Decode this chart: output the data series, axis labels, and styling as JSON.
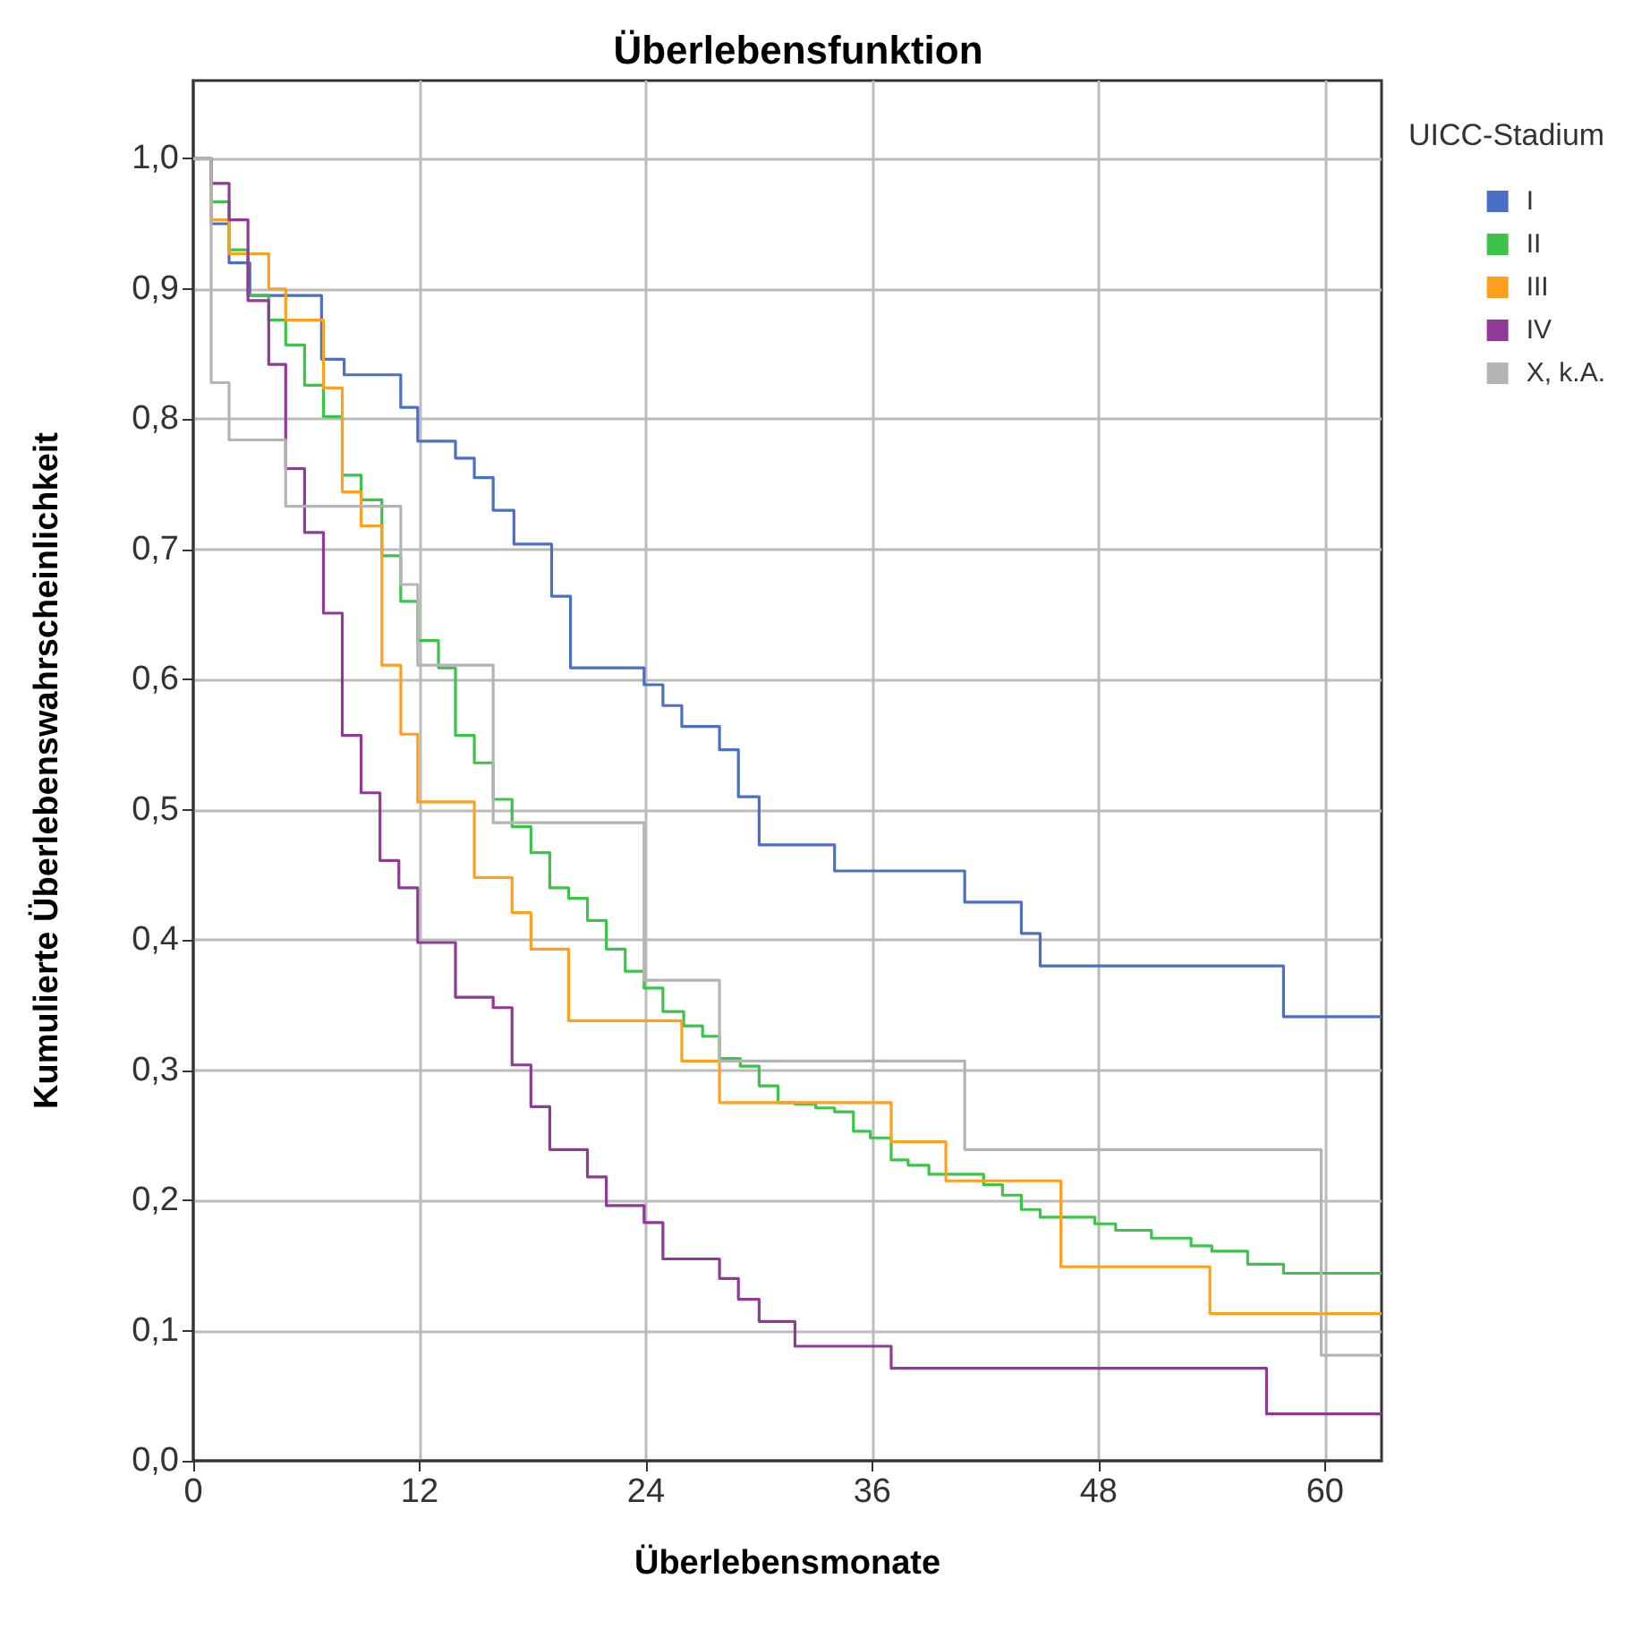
{
  "chart_data": {
    "type": "step",
    "title": "Überlebensfunktion",
    "xlabel": "Überlebensmonate",
    "ylabel": "Kumulierte Überlebenswahrscheinlichkeit",
    "legend_title": "UICC-Stadium",
    "xlim": [
      0,
      63
    ],
    "xticks": [
      0,
      12,
      24,
      36,
      48,
      60
    ],
    "ylim": [
      0,
      1.06
    ],
    "yticks": [
      {
        "value": 0,
        "label": "0,0"
      },
      {
        "value": 0.1,
        "label": "0,1"
      },
      {
        "value": 0.2,
        "label": "0,2"
      },
      {
        "value": 0.3,
        "label": "0,3"
      },
      {
        "value": 0.4,
        "label": "0,4"
      },
      {
        "value": 0.5,
        "label": "0,5"
      },
      {
        "value": 0.6,
        "label": "0,6"
      },
      {
        "value": 0.7,
        "label": "0,7"
      },
      {
        "value": 0.8,
        "label": "0,8"
      },
      {
        "value": 0.9,
        "label": "0,9"
      },
      {
        "value": 1,
        "label": "1,0"
      }
    ],
    "grid": true,
    "legend": "right",
    "marker": "none",
    "line_style": "solid",
    "series": [
      {
        "name": "I",
        "color": "#4a6fc4",
        "x": [
          0,
          0.95,
          1.9,
          3,
          6.8,
          8,
          11,
          11.9,
          13.9,
          14.9,
          15.9,
          17,
          19,
          20,
          23.9,
          24.9,
          25.9,
          27.9,
          28.9,
          30,
          34,
          40.9,
          43.9,
          44.9,
          57.8,
          63
        ],
        "values": [
          1,
          0.95,
          0.92,
          0.895,
          0.846,
          0.834,
          0.809,
          0.783,
          0.77,
          0.755,
          0.73,
          0.704,
          0.664,
          0.609,
          0.596,
          0.58,
          0.564,
          0.546,
          0.51,
          0.473,
          0.453,
          0.429,
          0.405,
          0.38,
          0.341,
          0.341
        ]
      },
      {
        "name": "II",
        "color": "#3cc34a",
        "x": [
          0,
          0.95,
          1.9,
          2.9,
          4,
          4.9,
          5.9,
          6.9,
          7.9,
          8.9,
          10,
          11,
          11.9,
          13,
          13.9,
          14.9,
          15.9,
          16.9,
          17.9,
          18.9,
          19.9,
          20.9,
          21.9,
          22.9,
          23.9,
          24.9,
          26,
          27,
          27.9,
          29,
          30,
          31,
          31.9,
          33,
          34,
          35,
          35.9,
          37,
          37.9,
          39,
          41.9,
          42.9,
          43.9,
          44.9,
          47.8,
          48.9,
          50.8,
          52.9,
          54,
          55.9,
          57.8,
          63
        ],
        "values": [
          1,
          0.967,
          0.93,
          0.895,
          0.876,
          0.857,
          0.826,
          0.802,
          0.757,
          0.738,
          0.695,
          0.66,
          0.63,
          0.609,
          0.557,
          0.536,
          0.508,
          0.487,
          0.467,
          0.44,
          0.432,
          0.415,
          0.393,
          0.376,
          0.363,
          0.345,
          0.334,
          0.326,
          0.309,
          0.303,
          0.288,
          0.275,
          0.274,
          0.271,
          0.268,
          0.253,
          0.248,
          0.231,
          0.227,
          0.22,
          0.212,
          0.204,
          0.193,
          0.187,
          0.182,
          0.177,
          0.171,
          0.165,
          0.161,
          0.151,
          0.144,
          0.144
        ]
      },
      {
        "name": "III",
        "color": "#ff9f1f",
        "x": [
          0,
          0.95,
          1.9,
          4,
          4.9,
          6.9,
          7.9,
          8.9,
          10,
          11,
          11.9,
          14.9,
          16.9,
          17.9,
          19.9,
          25.9,
          27.9,
          37,
          39.9,
          46,
          53.9,
          63
        ],
        "values": [
          1,
          0.953,
          0.927,
          0.9,
          0.876,
          0.824,
          0.744,
          0.718,
          0.611,
          0.558,
          0.506,
          0.448,
          0.421,
          0.393,
          0.338,
          0.307,
          0.275,
          0.245,
          0.215,
          0.149,
          0.113,
          0.113
        ]
      },
      {
        "name": "IV",
        "color": "#8e3a96",
        "x": [
          0,
          0.95,
          1.9,
          2.9,
          4,
          4.9,
          5.9,
          6.9,
          7.9,
          8.9,
          9.9,
          10.9,
          11.9,
          13.9,
          15.9,
          16.9,
          17.9,
          18.9,
          20.9,
          21.9,
          23.9,
          24.9,
          27.9,
          28.9,
          30,
          31.9,
          37,
          56.9,
          63
        ],
        "values": [
          1,
          0.981,
          0.953,
          0.891,
          0.842,
          0.762,
          0.713,
          0.651,
          0.557,
          0.513,
          0.461,
          0.44,
          0.398,
          0.356,
          0.348,
          0.304,
          0.272,
          0.239,
          0.218,
          0.196,
          0.183,
          0.155,
          0.14,
          0.124,
          0.107,
          0.088,
          0.071,
          0.036,
          0.036
        ]
      },
      {
        "name": "X, k.A.",
        "color": "#b4b4b4",
        "x": [
          0,
          0.95,
          1.9,
          4.9,
          11,
          11.9,
          15.9,
          23.9,
          27.9,
          40.9,
          59.8,
          63
        ],
        "values": [
          1,
          0.828,
          0.784,
          0.733,
          0.673,
          0.611,
          0.49,
          0.369,
          0.307,
          0.239,
          0.081,
          0.081
        ]
      }
    ]
  }
}
